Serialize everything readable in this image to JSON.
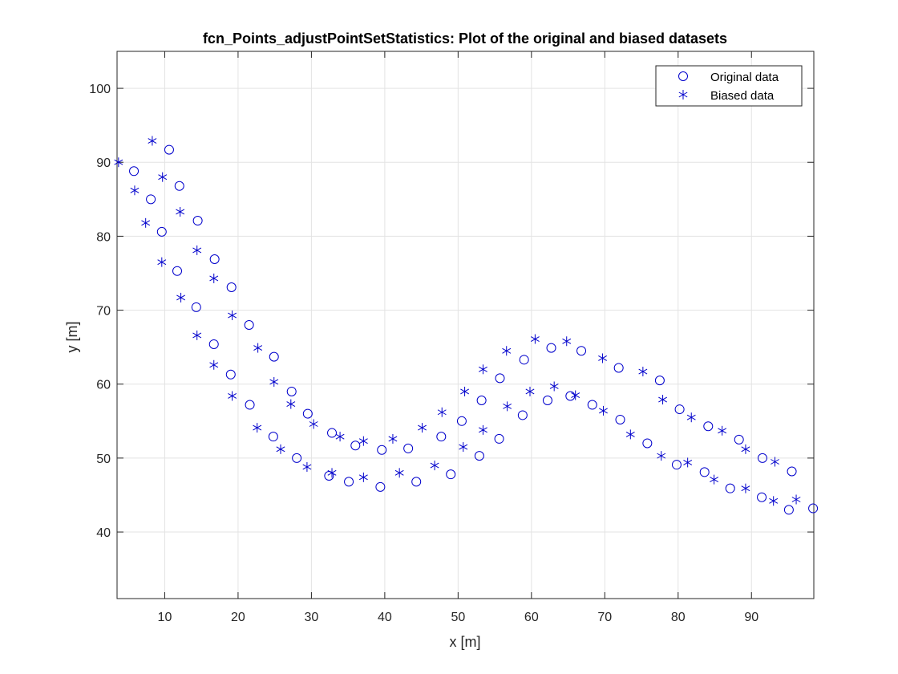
{
  "chart_data": {
    "type": "scatter",
    "title": "fcn_Points_adjustPointSetStatistics: Plot of the original and biased datasets",
    "xlabel": "x [m]",
    "ylabel": "y [m]",
    "xlim": [
      3.5,
      98.5
    ],
    "ylim": [
      31,
      105
    ],
    "xticks": [
      10,
      20,
      30,
      40,
      50,
      60,
      70,
      80,
      90
    ],
    "yticks": [
      40,
      50,
      60,
      70,
      80,
      90,
      100
    ],
    "grid": true,
    "legend_location": "top-right",
    "color": "#0000cc",
    "series": [
      {
        "name": "Original data",
        "marker": "circle",
        "x": [
          5.8,
          8.1,
          9.6,
          10.6,
          11.7,
          12.0,
          14.3,
          14.5,
          16.7,
          16.8,
          19.0,
          19.1,
          21.6,
          21.5,
          24.8,
          24.9,
          27.3,
          28.0,
          29.5,
          32.4,
          32.8,
          35.1,
          36.0,
          39.4,
          39.6,
          43.2,
          44.3,
          47.7,
          49.0,
          50.5,
          52.9,
          53.2,
          55.6,
          55.7,
          58.8,
          59.0,
          62.2,
          62.7,
          65.3,
          66.8,
          68.3,
          71.9,
          72.1,
          75.8,
          77.5,
          79.8,
          80.2,
          83.6,
          84.1,
          87.1,
          88.3,
          91.4,
          91.5,
          95.1,
          95.5,
          98.4
        ],
        "y": [
          88.8,
          85.0,
          80.6,
          91.7,
          75.3,
          86.8,
          70.4,
          82.1,
          65.4,
          76.9,
          61.3,
          73.1,
          57.2,
          68.0,
          52.9,
          63.7,
          59.0,
          50.0,
          56.0,
          47.6,
          53.4,
          46.8,
          51.7,
          46.1,
          51.1,
          51.3,
          46.8,
          52.9,
          47.8,
          55.0,
          50.3,
          57.8,
          52.6,
          60.8,
          55.8,
          63.3,
          57.8,
          64.9,
          58.4,
          64.5,
          57.2,
          62.2,
          55.2,
          52.0,
          60.5,
          49.1,
          56.6,
          48.1,
          54.3,
          45.9,
          52.5,
          44.7,
          50.0,
          43.0,
          48.2,
          43.2
        ]
      },
      {
        "name": "Biased data",
        "marker": "asterisk",
        "x": [
          3.7,
          5.9,
          7.4,
          8.3,
          9.6,
          9.7,
          12.2,
          12.1,
          14.4,
          14.4,
          16.7,
          16.7,
          19.2,
          19.2,
          22.6,
          22.7,
          24.9,
          25.8,
          27.2,
          29.4,
          30.3,
          32.8,
          33.9,
          37.1,
          37.1,
          41.1,
          42.0,
          45.1,
          46.8,
          47.8,
          50.7,
          50.9,
          53.4,
          53.4,
          56.7,
          56.6,
          59.8,
          60.5,
          63.1,
          64.8,
          66.0,
          69.7,
          69.8,
          73.5,
          75.2,
          77.7,
          77.9,
          81.3,
          81.8,
          84.9,
          86.0,
          89.2,
          89.2,
          93.0,
          93.2,
          96.1
        ],
        "y": [
          90.0,
          86.2,
          81.8,
          92.9,
          76.5,
          88.0,
          71.7,
          83.3,
          66.6,
          78.1,
          62.6,
          74.3,
          58.4,
          69.3,
          54.1,
          64.9,
          60.3,
          51.2,
          57.3,
          48.8,
          54.6,
          48.0,
          52.9,
          47.4,
          52.3,
          52.6,
          48.0,
          54.1,
          49.0,
          56.2,
          51.5,
          59.0,
          53.8,
          62.0,
          57.0,
          64.5,
          59.0,
          66.1,
          59.7,
          65.8,
          58.5,
          63.5,
          56.4,
          53.2,
          61.7,
          50.3,
          57.9,
          49.4,
          55.5,
          47.1,
          53.7,
          45.9,
          51.2,
          44.2,
          49.5,
          44.4
        ]
      }
    ]
  }
}
